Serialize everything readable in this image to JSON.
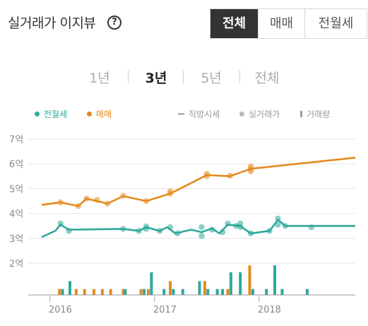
{
  "header": {
    "title": "실거래가 이지뷰",
    "help_symbol": "?",
    "tabs": [
      {
        "label": "전체",
        "active": true
      },
      {
        "label": "매매",
        "active": false
      },
      {
        "label": "전월세",
        "active": false
      }
    ]
  },
  "periods": [
    {
      "label": "1년",
      "active": false
    },
    {
      "label": "3년",
      "active": true
    },
    {
      "label": "5년",
      "active": false
    },
    {
      "label": "전체",
      "active": false
    }
  ],
  "legend": {
    "jeonwolse": "전월세",
    "maemae": "매매",
    "market": "직방시세",
    "actual": "실거래가",
    "volume": "거래량"
  },
  "colors": {
    "jeonwolse": "#2ea89a",
    "maemae": "#e58a1f",
    "legend_gray": "#bbbbbb",
    "grid": "#e6e6e6"
  },
  "chart_data": {
    "type": "line",
    "y_unit": "억",
    "y_ticks": [
      "2억",
      "3억",
      "4억",
      "5억",
      "6억",
      "7억"
    ],
    "ylim": [
      2,
      7
    ],
    "x_ticks": [
      "2016",
      "2017",
      "2018"
    ],
    "xlim": [
      2015.92,
      2018.92
    ],
    "series": [
      {
        "name": "매매",
        "key": "maemae",
        "line": [
          [
            2015.92,
            4.35
          ],
          [
            2016.1,
            4.45
          ],
          [
            2016.27,
            4.3
          ],
          [
            2016.35,
            4.6
          ],
          [
            2016.45,
            4.5
          ],
          [
            2016.55,
            4.4
          ],
          [
            2016.7,
            4.7
          ],
          [
            2016.92,
            4.5
          ],
          [
            2017.15,
            4.8
          ],
          [
            2017.5,
            5.55
          ],
          [
            2017.72,
            5.5
          ],
          [
            2017.92,
            5.8
          ],
          [
            2018.92,
            6.25
          ]
        ],
        "points": [
          [
            2016.1,
            4.45
          ],
          [
            2016.27,
            4.3
          ],
          [
            2016.35,
            4.6
          ],
          [
            2016.45,
            4.55
          ],
          [
            2016.55,
            4.4
          ],
          [
            2016.7,
            4.72
          ],
          [
            2016.92,
            4.5
          ],
          [
            2017.15,
            4.8
          ],
          [
            2017.15,
            4.9
          ],
          [
            2017.5,
            5.5
          ],
          [
            2017.5,
            5.6
          ],
          [
            2017.72,
            5.52
          ],
          [
            2017.92,
            5.8
          ],
          [
            2017.92,
            5.9
          ],
          [
            2017.92,
            5.7
          ]
        ]
      },
      {
        "name": "전월세",
        "key": "jeonwolse",
        "line": [
          [
            2015.92,
            3.05
          ],
          [
            2016.05,
            3.3
          ],
          [
            2016.1,
            3.55
          ],
          [
            2016.18,
            3.35
          ],
          [
            2016.7,
            3.38
          ],
          [
            2016.85,
            3.3
          ],
          [
            2016.92,
            3.45
          ],
          [
            2017.05,
            3.3
          ],
          [
            2017.12,
            3.45
          ],
          [
            2017.2,
            3.2
          ],
          [
            2017.35,
            3.35
          ],
          [
            2017.45,
            3.25
          ],
          [
            2017.55,
            3.4
          ],
          [
            2017.62,
            3.2
          ],
          [
            2017.7,
            3.55
          ],
          [
            2017.82,
            3.5
          ],
          [
            2017.92,
            3.2
          ],
          [
            2018.1,
            3.3
          ],
          [
            2018.18,
            3.75
          ],
          [
            2018.25,
            3.5
          ],
          [
            2018.92,
            3.5
          ]
        ],
        "points": [
          [
            2016.1,
            3.6
          ],
          [
            2016.18,
            3.3
          ],
          [
            2016.7,
            3.38
          ],
          [
            2016.85,
            3.3
          ],
          [
            2016.92,
            3.48
          ],
          [
            2016.92,
            3.38
          ],
          [
            2017.05,
            3.3
          ],
          [
            2017.15,
            3.45
          ],
          [
            2017.22,
            3.2
          ],
          [
            2017.45,
            3.1
          ],
          [
            2017.45,
            3.45
          ],
          [
            2017.55,
            3.35
          ],
          [
            2017.65,
            3.25
          ],
          [
            2017.7,
            3.6
          ],
          [
            2017.78,
            3.5
          ],
          [
            2017.82,
            3.45
          ],
          [
            2017.82,
            3.6
          ],
          [
            2017.92,
            3.2
          ],
          [
            2018.1,
            3.3
          ],
          [
            2018.18,
            3.8
          ],
          [
            2018.18,
            3.55
          ],
          [
            2018.25,
            3.5
          ],
          [
            2018.5,
            3.45
          ]
        ]
      }
    ],
    "volume": {
      "max": 3,
      "bars": [
        {
          "x": 2016.09,
          "v": 0.6,
          "s": "maemae"
        },
        {
          "x": 2016.12,
          "v": 0.6,
          "s": "jeonwolse"
        },
        {
          "x": 2016.19,
          "v": 1.4,
          "s": "jeonwolse"
        },
        {
          "x": 2016.25,
          "v": 0.6,
          "s": "maemae"
        },
        {
          "x": 2016.33,
          "v": 0.6,
          "s": "maemae"
        },
        {
          "x": 2016.42,
          "v": 0.6,
          "s": "maemae"
        },
        {
          "x": 2016.5,
          "v": 0.6,
          "s": "maemae"
        },
        {
          "x": 2016.58,
          "v": 0.6,
          "s": "maemae"
        },
        {
          "x": 2016.7,
          "v": 0.6,
          "s": "maemae"
        },
        {
          "x": 2016.72,
          "v": 0.6,
          "s": "jeonwolse"
        },
        {
          "x": 2016.87,
          "v": 0.6,
          "s": "maemae"
        },
        {
          "x": 2016.9,
          "v": 0.6,
          "s": "jeonwolse"
        },
        {
          "x": 2016.94,
          "v": 0.6,
          "s": "maemae"
        },
        {
          "x": 2016.97,
          "v": 2.3,
          "s": "jeonwolse"
        },
        {
          "x": 2017.09,
          "v": 0.6,
          "s": "jeonwolse"
        },
        {
          "x": 2017.15,
          "v": 1.4,
          "s": "maemae"
        },
        {
          "x": 2017.18,
          "v": 0.6,
          "s": "jeonwolse"
        },
        {
          "x": 2017.27,
          "v": 0.6,
          "s": "jeonwolse"
        },
        {
          "x": 2017.43,
          "v": 1.4,
          "s": "jeonwolse"
        },
        {
          "x": 2017.48,
          "v": 1.4,
          "s": "maemae"
        },
        {
          "x": 2017.51,
          "v": 0.6,
          "s": "jeonwolse"
        },
        {
          "x": 2017.6,
          "v": 0.6,
          "s": "jeonwolse"
        },
        {
          "x": 2017.65,
          "v": 0.6,
          "s": "jeonwolse"
        },
        {
          "x": 2017.7,
          "v": 0.6,
          "s": "maemae"
        },
        {
          "x": 2017.73,
          "v": 2.3,
          "s": "jeonwolse"
        },
        {
          "x": 2017.82,
          "v": 2.3,
          "s": "jeonwolse"
        },
        {
          "x": 2017.91,
          "v": 3.0,
          "s": "maemae"
        },
        {
          "x": 2017.94,
          "v": 0.6,
          "s": "jeonwolse"
        },
        {
          "x": 2018.07,
          "v": 0.6,
          "s": "jeonwolse"
        },
        {
          "x": 2018.15,
          "v": 3.0,
          "s": "jeonwolse"
        },
        {
          "x": 2018.22,
          "v": 0.6,
          "s": "jeonwolse"
        },
        {
          "x": 2018.46,
          "v": 0.6,
          "s": "jeonwolse"
        }
      ]
    }
  }
}
